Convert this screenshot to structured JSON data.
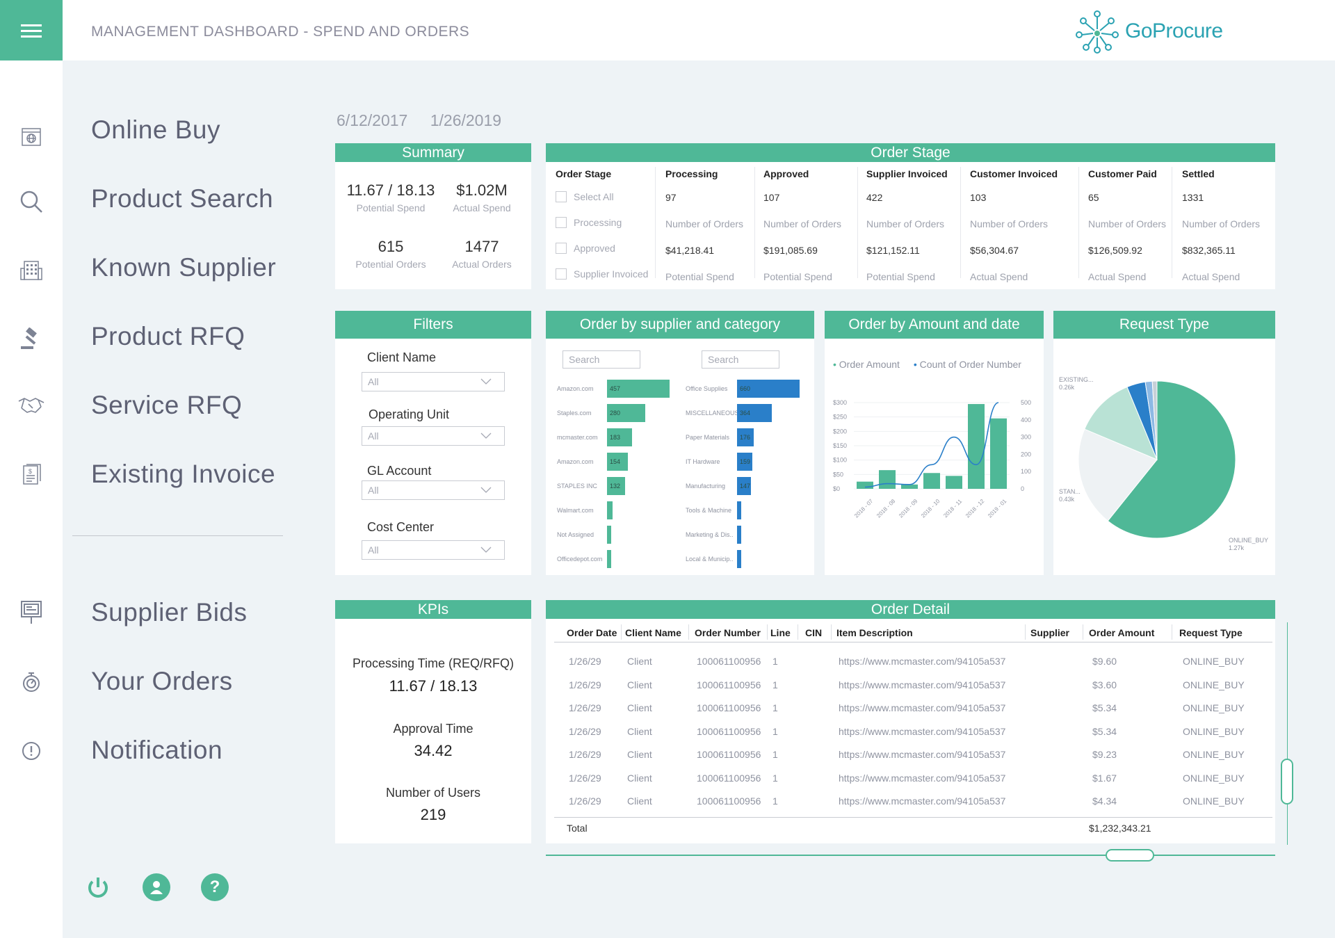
{
  "header": {
    "title": "MANAGEMENT DASHBOARD - SPEND AND ORDERS",
    "logo_text": "GoProcure"
  },
  "nav": {
    "items": [
      {
        "label": "Online Buy",
        "icon": "globe-browser-icon"
      },
      {
        "label": "Product Search",
        "icon": "search-icon"
      },
      {
        "label": "Known Supplier",
        "icon": "building-icon"
      },
      {
        "label": "Product RFQ",
        "icon": "gavel-icon"
      },
      {
        "label": "Service RFQ",
        "icon": "handshake-icon"
      },
      {
        "label": "Existing Invoice",
        "icon": "invoice-icon"
      },
      {
        "label": "Supplier Bids",
        "icon": "billboard-icon"
      },
      {
        "label": "Your Orders",
        "icon": "stopwatch-icon"
      },
      {
        "label": "Notification",
        "icon": "alert-icon"
      }
    ],
    "bottom": [
      "power-icon",
      "user-icon",
      "help-icon"
    ],
    "help_glyph": "?"
  },
  "date_range": {
    "start": "6/12/2017",
    "end": "1/26/2019"
  },
  "summary": {
    "title": "Summary",
    "potential_spend": "11.67 / 18.13",
    "potential_spend_label": "Potential Spend",
    "actual_spend": "$1.02M",
    "actual_spend_label": "Actual Spend",
    "potential_orders": "615",
    "potential_orders_label": "Potential Orders",
    "actual_orders": "1477",
    "actual_orders_label": "Actual Orders"
  },
  "order_stage": {
    "title": "Order Stage",
    "filter_header": "Order Stage",
    "checkboxes": [
      "Select All",
      "Processing",
      "Approved",
      "Supplier Invoiced"
    ],
    "columns": [
      {
        "head": "Processing",
        "count": "97",
        "count_label": "Number of Orders",
        "amount": "$41,218.41",
        "amount_label": "Potential Spend"
      },
      {
        "head": "Approved",
        "count": "107",
        "count_label": "Number of Orders",
        "amount": "$191,085.69",
        "amount_label": "Potential Spend"
      },
      {
        "head": "Supplier Invoiced",
        "count": "422",
        "count_label": "Number of Orders",
        "amount": "$121,152.11",
        "amount_label": "Potential Spend"
      },
      {
        "head": "Customer Invoiced",
        "count": "103",
        "count_label": "Number of Orders",
        "amount": "$56,304.67",
        "amount_label": "Actual Spend"
      },
      {
        "head": "Customer Paid",
        "count": "65",
        "count_label": "Number of Orders",
        "amount": "$126,509.92",
        "amount_label": "Actual Spend"
      },
      {
        "head": "Settled",
        "count": "1331",
        "count_label": "Number of Orders",
        "amount": "$832,365.11",
        "amount_label": "Actual Spend"
      }
    ]
  },
  "filters": {
    "title": "Filters",
    "items": [
      {
        "label": "Client Name",
        "value": "All"
      },
      {
        "label": "Operating Unit",
        "value": "All"
      },
      {
        "label": "GL Account",
        "value": "All"
      },
      {
        "label": "Cost Center",
        "value": "All"
      }
    ]
  },
  "supplier_category": {
    "title": "Order by supplier and category",
    "search_placeholder": "Search",
    "suppliers": [
      {
        "name": "Amazon.com",
        "value": 457
      },
      {
        "name": "Staples.com",
        "value": 280
      },
      {
        "name": "mcmaster.com",
        "value": 183
      },
      {
        "name": "Amazon.com",
        "value": 154
      },
      {
        "name": "STAPLES INC",
        "value": 132
      },
      {
        "name": "Walmart.com",
        "value": 40
      },
      {
        "name": "Not Assigned",
        "value": 20
      },
      {
        "name": "Officedepot.com",
        "value": 20
      }
    ],
    "categories": [
      {
        "name": "Office Supplies",
        "value": 660
      },
      {
        "name": "MISCELLANEOUS",
        "value": 364
      },
      {
        "name": "Paper Materials",
        "value": 176
      },
      {
        "name": "IT Hardware",
        "value": 159
      },
      {
        "name": "Manufacturing",
        "value": 147
      },
      {
        "name": "Tools & Machine",
        "value": 40
      },
      {
        "name": "Marketing & Dis..",
        "value": 30
      },
      {
        "name": "Local & Municip..",
        "value": 30
      }
    ],
    "colors": {
      "supplier": "#4fb897",
      "category": "#2a7fc9"
    }
  },
  "amount_date": {
    "title": "Order by Amount and date",
    "legend": [
      "Order Amount",
      "Count of Order Number"
    ]
  },
  "request_type": {
    "title": "Request Type",
    "labels": {
      "existing": "EXISTING...",
      "existing_value": "0.26k",
      "stan": "STAN...",
      "stan_value": "0.43k",
      "online": "ONLINE_BUY",
      "online_value": "1.27k"
    }
  },
  "chart_data": [
    {
      "type": "bar",
      "title": "Order by Amount and date",
      "categories": [
        "2018 - 07",
        "2018 - 08",
        "2018 - 09",
        "2018 - 10",
        "2018 - 11",
        "2018 - 12",
        "2019 - 01"
      ],
      "series": [
        {
          "name": "Order Amount",
          "type": "bar",
          "values": [
            25,
            65,
            15,
            55,
            45,
            295,
            245
          ]
        },
        {
          "name": "Count of Order Number",
          "type": "line",
          "values": [
            10,
            30,
            25,
            140,
            300,
            140,
            500
          ]
        }
      ],
      "y_left": {
        "ticks": [
          "$0",
          "$50",
          "$100",
          "$150",
          "$200",
          "$250",
          "$300"
        ],
        "range": [
          0,
          300
        ]
      },
      "y_right": {
        "ticks": [
          "0",
          "100",
          "200",
          "300",
          "400",
          "500"
        ],
        "range": [
          0,
          500
        ]
      },
      "colors": {
        "bar": "#4fb897",
        "line": "#2a7fc9"
      }
    },
    {
      "type": "pie",
      "title": "Request Type",
      "slices": [
        {
          "name": "ONLINE_BUY",
          "value": 1.27,
          "color": "#4fb897"
        },
        {
          "name": "STAN...",
          "value": 0.43,
          "color": "#eef2f4"
        },
        {
          "name": "EXISTING...",
          "value": 0.26,
          "color": "#b9e2d5"
        },
        {
          "name": "other-blue",
          "value": 0.08,
          "color": "#2a7fc9"
        },
        {
          "name": "other-lightblue",
          "value": 0.03,
          "color": "#8db9e4"
        },
        {
          "name": "other-grey",
          "value": 0.02,
          "color": "#c7d0d8"
        }
      ]
    }
  ],
  "kpis": {
    "title": "KPIs",
    "items": [
      {
        "label": "Processing Time (REQ/RFQ)",
        "value": "11.67 / 18.13"
      },
      {
        "label": "Approval Time",
        "value": "34.42"
      },
      {
        "label": "Number of Users",
        "value": "219"
      }
    ]
  },
  "order_detail": {
    "title": "Order Detail",
    "columns": [
      "Order Date",
      "Client Name",
      "Order Number",
      "Line",
      "CIN",
      "Item Description",
      "Supplier",
      "Order Amount",
      "Request Type"
    ],
    "rows": [
      [
        "1/26/29",
        "Client",
        "100061100956",
        "1",
        "",
        "https://www.mcmaster.com/94105a537",
        "",
        "$9.60",
        "ONLINE_BUY"
      ],
      [
        "1/26/29",
        "Client",
        "100061100956",
        "1",
        "",
        "https://www.mcmaster.com/94105a537",
        "",
        "$3.60",
        "ONLINE_BUY"
      ],
      [
        "1/26/29",
        "Client",
        "100061100956",
        "1",
        "",
        "https://www.mcmaster.com/94105a537",
        "",
        "$5.34",
        "ONLINE_BUY"
      ],
      [
        "1/26/29",
        "Client",
        "100061100956",
        "1",
        "",
        "https://www.mcmaster.com/94105a537",
        "",
        "$5.34",
        "ONLINE_BUY"
      ],
      [
        "1/26/29",
        "Client",
        "100061100956",
        "1",
        "",
        "https://www.mcmaster.com/94105a537",
        "",
        "$9.23",
        "ONLINE_BUY"
      ],
      [
        "1/26/29",
        "Client",
        "100061100956",
        "1",
        "",
        "https://www.mcmaster.com/94105a537",
        "",
        "$1.67",
        "ONLINE_BUY"
      ],
      [
        "1/26/29",
        "Client",
        "100061100956",
        "1",
        "",
        "https://www.mcmaster.com/94105a537",
        "",
        "$4.34",
        "ONLINE_BUY"
      ]
    ],
    "total_label": "Total",
    "total_value": "$1,232,343.21"
  }
}
